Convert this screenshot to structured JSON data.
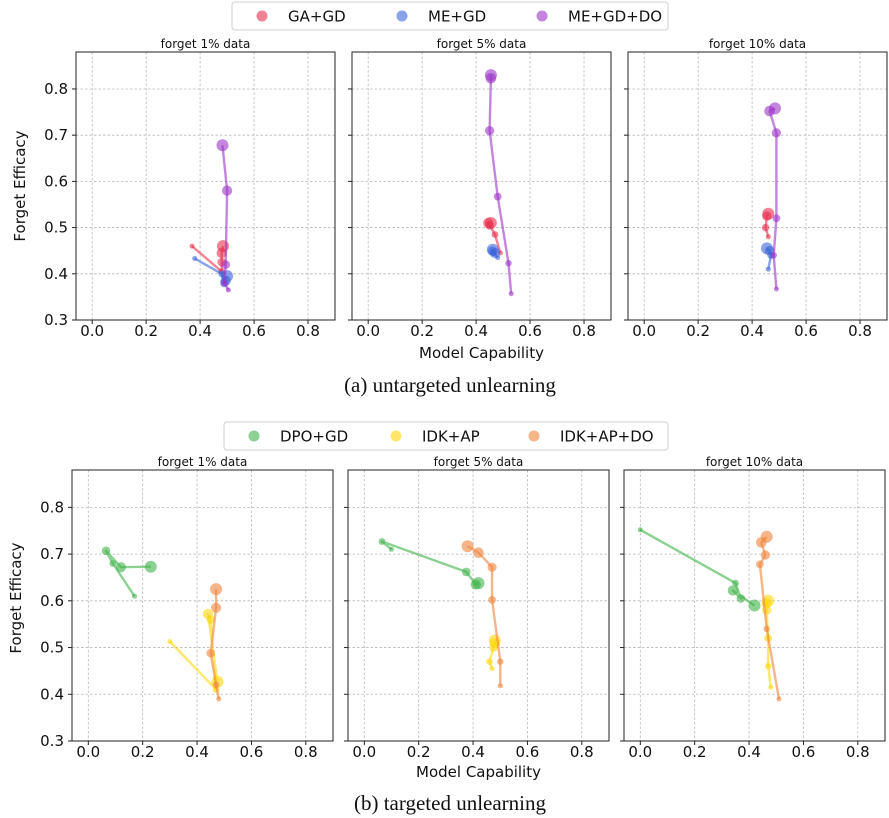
{
  "colors": {
    "GA+GD": "#e8304f",
    "ME+GD": "#3c64dc",
    "ME+GD+DO": "#9c34c8",
    "DPO+GD": "#3fb24a",
    "IDK+AP": "#ffd70a",
    "IDK+AP+DO": "#f0843a"
  },
  "captions": {
    "a": "(a)  untargeted unlearning",
    "b": "(b)  targeted unlearning"
  },
  "chart_data": [
    {
      "type": "scatter",
      "group": "untargeted",
      "legend": {
        "position": "top-center",
        "entries": [
          "GA+GD",
          "ME+GD",
          "ME+GD+DO"
        ]
      },
      "ylabel": "Forget Efficacy",
      "xlabel": "Model Capability",
      "xlim": [
        -0.06,
        0.9
      ],
      "ylim": [
        0.3,
        0.88
      ],
      "xticks": [
        "0.0",
        "0.2",
        "0.4",
        "0.6",
        "0.8"
      ],
      "yticks": [
        "0.3",
        "0.4",
        "0.5",
        "0.6",
        "0.7",
        "0.8"
      ],
      "grid": true,
      "panels": [
        {
          "title": "forget 1% data",
          "series": [
            {
              "name": "GA+GD",
              "points": [
                [
                  0.37,
                  0.46
                ],
                [
                  0.48,
                  0.405
                ],
                [
                  0.48,
                  0.425
                ],
                [
                  0.48,
                  0.445
                ],
                [
                  0.485,
                  0.46
                ]
              ]
            },
            {
              "name": "ME+GD",
              "points": [
                [
                  0.38,
                  0.433
                ],
                [
                  0.48,
                  0.4
                ],
                [
                  0.49,
                  0.38
                ],
                [
                  0.495,
                  0.385
                ],
                [
                  0.5,
                  0.395
                ]
              ]
            },
            {
              "name": "ME+GD+DO",
              "points": [
                [
                  0.505,
                  0.365
                ],
                [
                  0.49,
                  0.38
                ],
                [
                  0.495,
                  0.42
                ],
                [
                  0.5,
                  0.58
                ],
                [
                  0.483,
                  0.678
                ]
              ]
            }
          ]
        },
        {
          "title": "forget 5% data",
          "series": [
            {
              "name": "GA+GD",
              "points": [
                [
                  0.49,
                  0.445
                ],
                [
                  0.47,
                  0.485
                ],
                [
                  0.45,
                  0.505
                ],
                [
                  0.445,
                  0.51
                ],
                [
                  0.455,
                  0.51
                ]
              ]
            },
            {
              "name": "ME+GD",
              "points": [
                [
                  0.48,
                  0.435
                ],
                [
                  0.465,
                  0.445
                ],
                [
                  0.46,
                  0.45
                ],
                [
                  0.47,
                  0.445
                ],
                [
                  0.462,
                  0.452
                ]
              ]
            },
            {
              "name": "ME+GD+DO",
              "points": [
                [
                  0.53,
                  0.357
                ],
                [
                  0.52,
                  0.423
                ],
                [
                  0.48,
                  0.567
                ],
                [
                  0.45,
                  0.71
                ],
                [
                  0.455,
                  0.823
                ],
                [
                  0.455,
                  0.83
                ]
              ]
            }
          ]
        },
        {
          "title": "forget 10% data",
          "series": [
            {
              "name": "GA+GD",
              "points": [
                [
                  0.46,
                  0.48
                ],
                [
                  0.45,
                  0.5
                ],
                [
                  0.455,
                  0.525
                ],
                [
                  0.46,
                  0.53
                ]
              ]
            },
            {
              "name": "ME+GD",
              "points": [
                [
                  0.46,
                  0.41
                ],
                [
                  0.47,
                  0.44
                ],
                [
                  0.465,
                  0.45
                ],
                [
                  0.455,
                  0.455
                ]
              ]
            },
            {
              "name": "ME+GD+DO",
              "points": [
                [
                  0.49,
                  0.367
                ],
                [
                  0.48,
                  0.44
                ],
                [
                  0.49,
                  0.52
                ],
                [
                  0.49,
                  0.705
                ],
                [
                  0.465,
                  0.752
                ],
                [
                  0.485,
                  0.758
                ]
              ]
            }
          ]
        }
      ]
    },
    {
      "type": "scatter",
      "group": "targeted",
      "legend": {
        "position": "top-center",
        "entries": [
          "DPO+GD",
          "IDK+AP",
          "IDK+AP+DO"
        ]
      },
      "ylabel": "Forget Efficacy",
      "xlabel": "Model Capability",
      "xlim": [
        -0.06,
        0.9
      ],
      "ylim": [
        0.3,
        0.88
      ],
      "xticks": [
        "0.0",
        "0.2",
        "0.4",
        "0.6",
        "0.8"
      ],
      "yticks": [
        "0.3",
        "0.4",
        "0.5",
        "0.6",
        "0.7",
        "0.8"
      ],
      "grid": true,
      "panels": [
        {
          "title": "forget 1% data",
          "series": [
            {
              "name": "DPO+GD",
              "points": [
                [
                  0.17,
                  0.61
                ],
                [
                  0.09,
                  0.68
                ],
                [
                  0.065,
                  0.707
                ],
                [
                  0.12,
                  0.672
                ],
                [
                  0.23,
                  0.673
                ]
              ]
            },
            {
              "name": "IDK+AP",
              "points": [
                [
                  0.3,
                  0.513
                ],
                [
                  0.47,
                  0.41
                ],
                [
                  0.45,
                  0.56
                ],
                [
                  0.44,
                  0.572
                ],
                [
                  0.475,
                  0.427
                ]
              ]
            },
            {
              "name": "IDK+AP+DO",
              "points": [
                [
                  0.48,
                  0.39
                ],
                [
                  0.47,
                  0.42
                ],
                [
                  0.45,
                  0.488
                ],
                [
                  0.47,
                  0.585
                ],
                [
                  0.47,
                  0.625
                ]
              ]
            }
          ]
        },
        {
          "title": "forget 5% data",
          "series": [
            {
              "name": "DPO+GD",
              "points": [
                [
                  0.1,
                  0.71
                ],
                [
                  0.065,
                  0.727
                ],
                [
                  0.375,
                  0.662
                ],
                [
                  0.41,
                  0.635
                ],
                [
                  0.42,
                  0.638
                ]
              ]
            },
            {
              "name": "IDK+AP",
              "points": [
                [
                  0.47,
                  0.455
                ],
                [
                  0.46,
                  0.47
                ],
                [
                  0.475,
                  0.5
                ],
                [
                  0.48,
                  0.51
                ],
                [
                  0.48,
                  0.515
                ]
              ]
            },
            {
              "name": "IDK+AP+DO",
              "points": [
                [
                  0.5,
                  0.418
                ],
                [
                  0.5,
                  0.47
                ],
                [
                  0.47,
                  0.602
                ],
                [
                  0.47,
                  0.672
                ],
                [
                  0.42,
                  0.703
                ],
                [
                  0.38,
                  0.717
                ]
              ]
            }
          ]
        },
        {
          "title": "forget 10% data",
          "series": [
            {
              "name": "DPO+GD",
              "points": [
                [
                  0.0,
                  0.752
                ],
                [
                  0.35,
                  0.638
                ],
                [
                  0.37,
                  0.605
                ],
                [
                  0.34,
                  0.622
                ],
                [
                  0.42,
                  0.59
                ]
              ]
            },
            {
              "name": "IDK+AP",
              "points": [
                [
                  0.48,
                  0.415
                ],
                [
                  0.47,
                  0.46
                ],
                [
                  0.47,
                  0.52
                ],
                [
                  0.465,
                  0.58
                ],
                [
                  0.465,
                  0.595
                ],
                [
                  0.47,
                  0.6
                ]
              ]
            },
            {
              "name": "IDK+AP+DO",
              "points": [
                [
                  0.51,
                  0.39
                ],
                [
                  0.465,
                  0.54
                ],
                [
                  0.44,
                  0.678
                ],
                [
                  0.46,
                  0.698
                ],
                [
                  0.445,
                  0.725
                ],
                [
                  0.465,
                  0.737
                ]
              ]
            }
          ]
        }
      ]
    }
  ]
}
